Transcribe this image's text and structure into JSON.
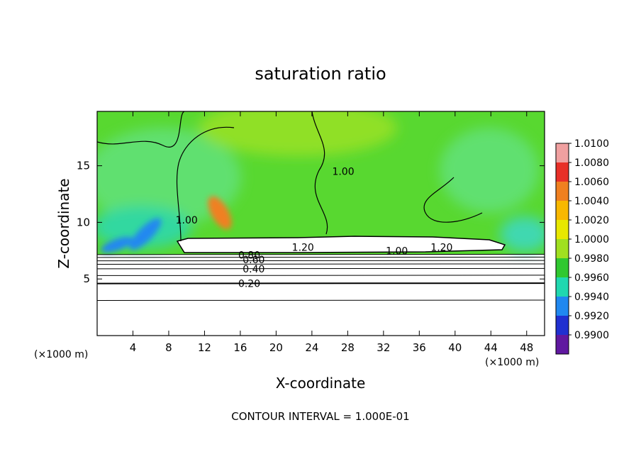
{
  "chart_data": {
    "type": "heatmap",
    "title": "saturation ratio",
    "xlabel": "X-coordinate",
    "ylabel": "Z-coordinate",
    "x_unit_label": "(×1000 m)",
    "xlim": [
      0,
      50
    ],
    "ylim": [
      0,
      19.8
    ],
    "x_ticks": [
      "4",
      "8",
      "12",
      "16",
      "20",
      "24",
      "28",
      "32",
      "36",
      "40",
      "44",
      "48"
    ],
    "x_tick_values": [
      4,
      8,
      12,
      16,
      20,
      24,
      28,
      32,
      36,
      40,
      44,
      48
    ],
    "y_ticks": [
      "5",
      "10",
      "15"
    ],
    "y_tick_values": [
      5,
      10,
      15
    ],
    "colorbar": {
      "labels": [
        "1.0100",
        "1.0080",
        "1.0060",
        "1.0040",
        "1.0020",
        "1.0000",
        "0.9980",
        "0.9960",
        "0.9940",
        "0.9920",
        "0.9900"
      ],
      "values": [
        1.01,
        1.008,
        1.006,
        1.004,
        1.002,
        1.0,
        0.998,
        0.996,
        0.994,
        0.992,
        0.99
      ],
      "colors": [
        "#f0a0a0",
        "#e83028",
        "#f08020",
        "#f8b800",
        "#e8e800",
        "#a0e020",
        "#30c830",
        "#20d8b0",
        "#2088f0",
        "#2030d0",
        "#6018a0"
      ]
    },
    "contour_labels": [
      {
        "text": "1.00",
        "x": 10,
        "z": 10.2
      },
      {
        "text": "1.00",
        "x": 27.5,
        "z": 14.5
      },
      {
        "text": "1.20",
        "x": 23,
        "z": 7.8
      },
      {
        "text": "1.00",
        "x": 33.5,
        "z": 7.5
      },
      {
        "text": "1.20",
        "x": 38.5,
        "z": 7.8
      },
      {
        "text": "0.80",
        "x": 17,
        "z": 7.1
      },
      {
        "text": "0.60",
        "x": 17.5,
        "z": 6.7
      },
      {
        "text": "0.40",
        "x": 17.5,
        "z": 5.9
      },
      {
        "text": "0.20",
        "x": 17,
        "z": 4.6
      }
    ],
    "contour_levels_below_cloud_z": [
      3.1,
      4.6,
      5.3,
      5.9,
      6.3,
      6.6,
      6.9,
      7.15
    ],
    "cloud_layer": {
      "x_range": [
        8.9,
        45.7
      ],
      "z_range": [
        7.3,
        8.6
      ]
    },
    "contour_interval": "1.000E-01"
  },
  "footer": {
    "contour_interval_text": "CONTOUR INTERVAL = 1.000E-01"
  }
}
